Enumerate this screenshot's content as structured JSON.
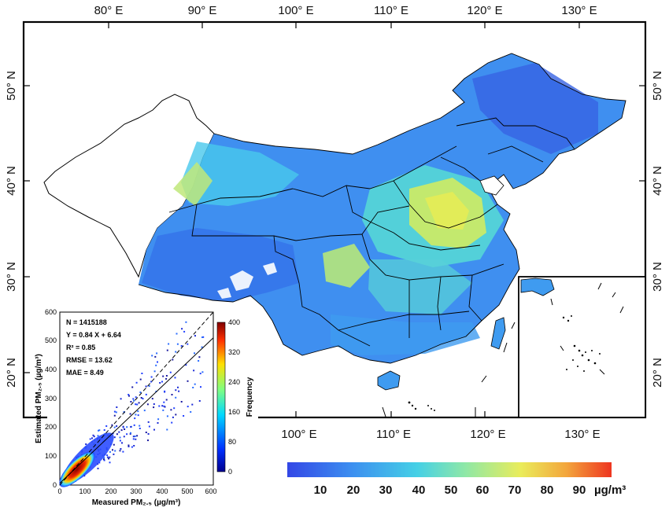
{
  "map": {
    "lon_top_ticks": [
      "80° E",
      "90° E",
      "100° E",
      "110° E",
      "120° E",
      "130° E"
    ],
    "lon_bottom_ticks": [
      "100° E",
      "110° E",
      "120° E",
      "130° E"
    ],
    "lat_ticks": [
      "50° N",
      "40° N",
      "30° N",
      "20° N"
    ],
    "colorbar_ticks": [
      "10",
      "20",
      "30",
      "40",
      "50",
      "60",
      "70",
      "80",
      "90"
    ],
    "colorbar_unit": "µg/m³",
    "colors": {
      "low": "#3b52e0",
      "mid": "#46c7e8",
      "high": "#e8e050",
      "max": "#ee3b20"
    }
  },
  "inset": {
    "stats": {
      "n": "N = 1415188",
      "equation": "Y = 0.84 X + 6.64",
      "r2": "R² = 0.85",
      "rmse": "RMSE = 13.62",
      "mae": "MAE = 8.49"
    },
    "xlabel": "Measured PM₂.₅ (µg/m³)",
    "ylabel": "Estimated PM₂.₅ (µg/m³)",
    "x_ticks": [
      "0",
      "100",
      "200",
      "300",
      "400",
      "500",
      "600"
    ],
    "y_ticks": [
      "0",
      "100",
      "200",
      "300",
      "400",
      "500",
      "600"
    ],
    "freq_label": "Frequency",
    "freq_ticks": [
      "0",
      "80",
      "160",
      "240",
      "320",
      "400"
    ]
  },
  "chart_data": {
    "type": "heatmap",
    "title": "",
    "xlabel": "Measured PM2.5 (µg/m3)",
    "ylabel": "Estimated PM2.5 (µg/m3)",
    "xlim": [
      0,
      600
    ],
    "ylim": [
      0,
      600
    ],
    "colorbar": {
      "label": "Frequency",
      "range": [
        0,
        400
      ]
    },
    "fit_line": {
      "slope": 0.84,
      "intercept": 6.64
    },
    "reference_line": {
      "slope": 1,
      "intercept": 0,
      "style": "dashed"
    },
    "statistics": {
      "N": 1415188,
      "R2": 0.85,
      "RMSE": 13.62,
      "MAE": 8.49
    }
  }
}
